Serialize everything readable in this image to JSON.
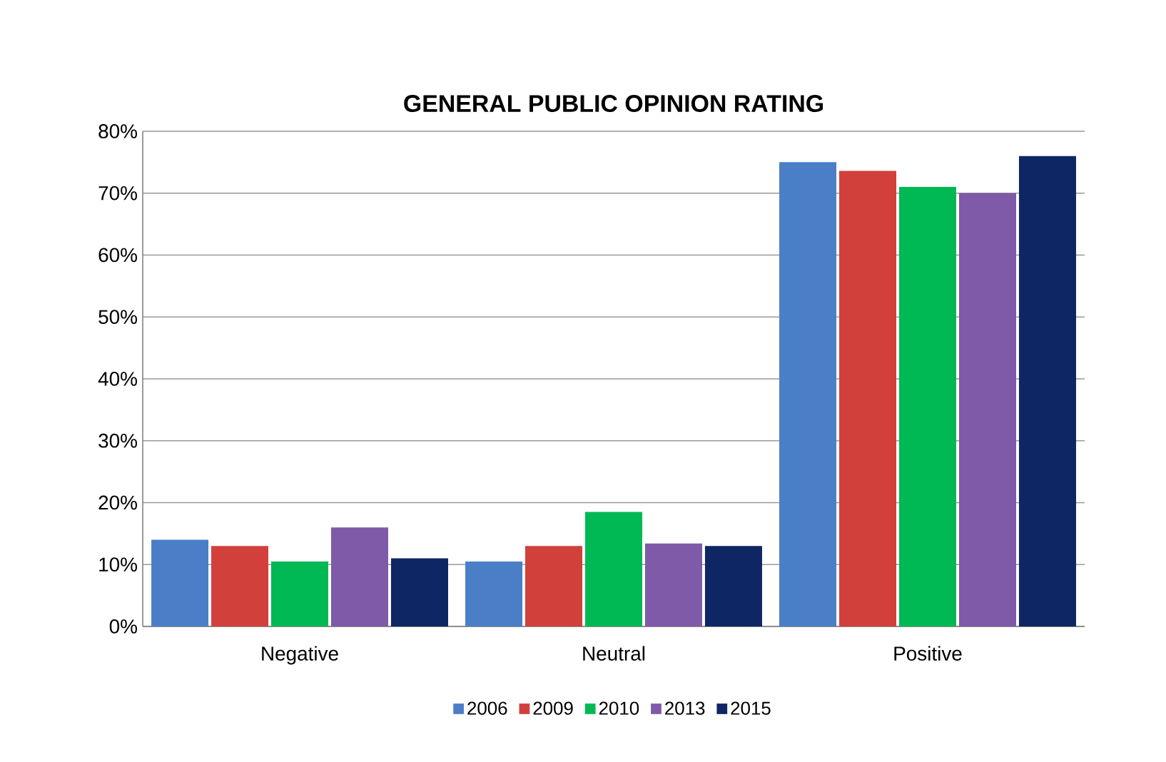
{
  "chart_data": {
    "type": "bar",
    "title": "GENERAL PUBLIC OPINION RATING",
    "categories": [
      "Negative",
      "Neutral",
      "Positive"
    ],
    "series": [
      {
        "name": "2006",
        "color": "#4a7fc7",
        "values": [
          14,
          10.5,
          75
        ]
      },
      {
        "name": "2009",
        "color": "#d2403c",
        "values": [
          13,
          13,
          73.6
        ]
      },
      {
        "name": "2010",
        "color": "#00b854",
        "values": [
          10.5,
          18.5,
          71
        ]
      },
      {
        "name": "2013",
        "color": "#7f5aa8",
        "values": [
          16,
          13.4,
          70
        ]
      },
      {
        "name": "2015",
        "color": "#0e2664",
        "values": [
          11,
          13,
          76
        ]
      }
    ],
    "ylim": [
      0,
      80
    ],
    "yticks": [
      {
        "value": 0,
        "label": "0%"
      },
      {
        "value": 10,
        "label": "10%"
      },
      {
        "value": 20,
        "label": "20%"
      },
      {
        "value": 30,
        "label": "30%"
      },
      {
        "value": 40,
        "label": "40%"
      },
      {
        "value": 50,
        "label": "50%"
      },
      {
        "value": 60,
        "label": "60%"
      },
      {
        "value": 70,
        "label": "70%"
      },
      {
        "value": 80,
        "label": "80%"
      }
    ],
    "grid": "y",
    "legend": "bottom"
  }
}
